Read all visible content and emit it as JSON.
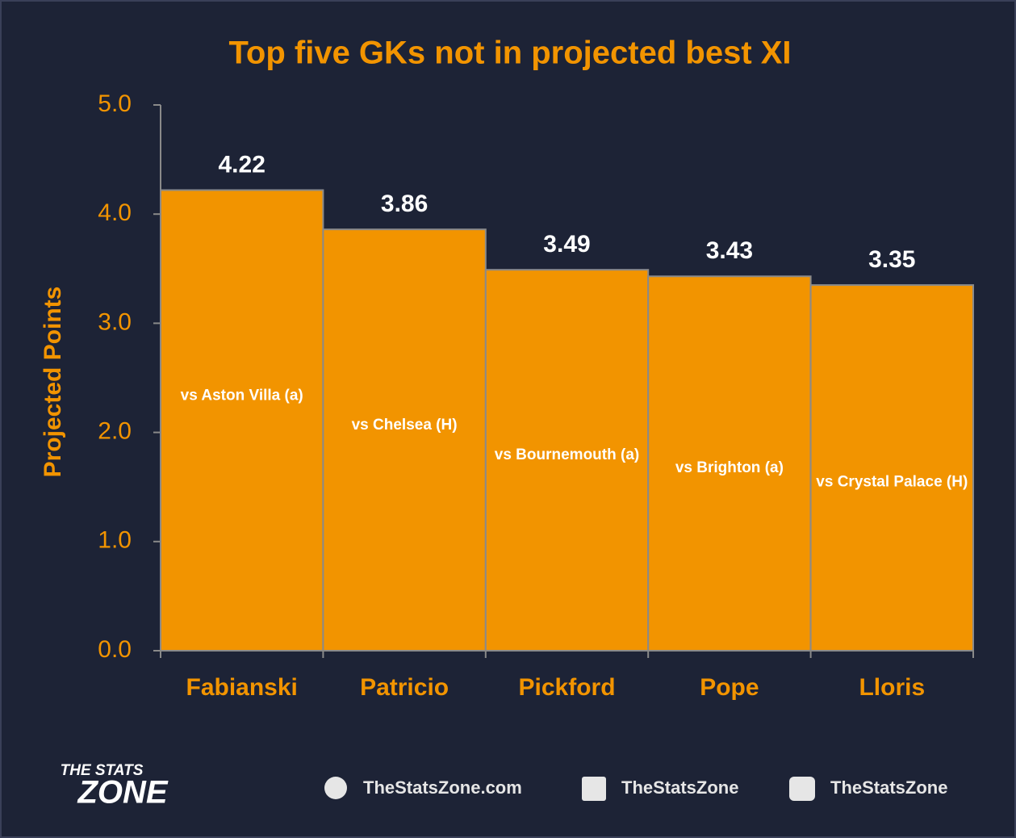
{
  "chart_data": {
    "type": "bar",
    "title": "Top five GKs not in projected best XI",
    "y_label": "Projected Points",
    "categories": [
      "Fabianski",
      "Patricio",
      "Pickford",
      "Pope",
      "Lloris"
    ],
    "values": [
      4.22,
      3.86,
      3.49,
      3.43,
      3.35
    ],
    "fixtures": [
      "vs Aston Villa (a)",
      "vs Chelsea (H)",
      "vs Bournemouth (a)",
      "vs Brighton (a)",
      "vs Crystal Palace (H)"
    ],
    "color": "#f29400",
    "ylim": [
      0,
      5
    ],
    "yticks": [
      {
        "value": 0,
        "label": "0.0"
      },
      {
        "value": 1,
        "label": "1.0"
      },
      {
        "value": 2,
        "label": "2.0"
      },
      {
        "value": 3,
        "label": "3.0"
      },
      {
        "value": 4,
        "label": "4.0"
      },
      {
        "value": 5,
        "label": "5.0"
      }
    ],
    "grid": false
  },
  "footer": {
    "logo_top": "THE STATS",
    "logo_bottom": "ZONE",
    "website": "TheStatsZone.com",
    "facebook": "TheStatsZone",
    "twitter": "TheStatsZone"
  }
}
